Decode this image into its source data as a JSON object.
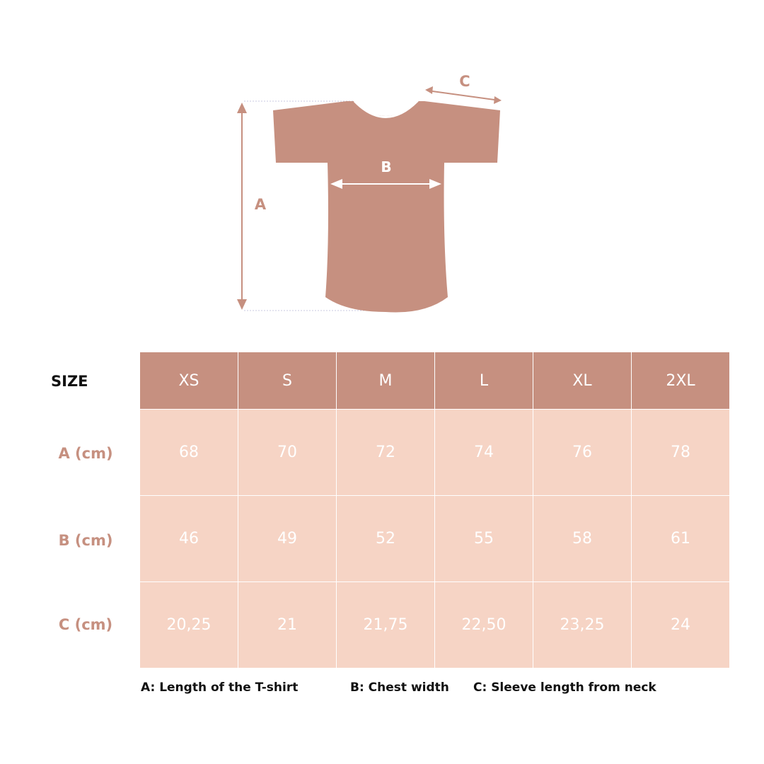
{
  "colors": {
    "header": "#c69080",
    "cell": "#f6d4c5",
    "accent": "#c69080"
  },
  "diagram": {
    "labels": {
      "a": "A",
      "b": "B",
      "c": "C"
    }
  },
  "table": {
    "corner_label": "SIZE",
    "sizes": [
      "XS",
      "S",
      "M",
      "L",
      "XL",
      "2XL"
    ],
    "rows": [
      {
        "label": "A (cm)",
        "values": [
          "68",
          "70",
          "72",
          "74",
          "76",
          "78"
        ]
      },
      {
        "label": "B (cm)",
        "values": [
          "46",
          "49",
          "52",
          "55",
          "58",
          "61"
        ]
      },
      {
        "label": "C (cm)",
        "values": [
          "20,25",
          "21",
          "21,75",
          "22,50",
          "23,25",
          "24"
        ]
      }
    ]
  },
  "legend": {
    "a": "A: Length of the T-shirt",
    "b": "B: Chest width",
    "c": "C: Sleeve length from neck"
  }
}
